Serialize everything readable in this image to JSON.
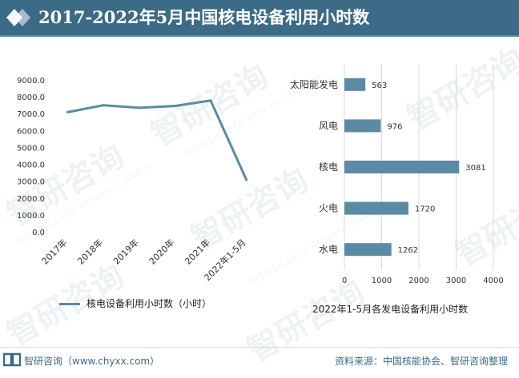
{
  "header": {
    "title": "2017-2022年5月中国核电设备利用小时数"
  },
  "watermark": {
    "text": "智研咨询",
    "sub": "INTELLIGENCE RESEARCH GROUP"
  },
  "chart_data": [
    {
      "type": "line",
      "categories": [
        "2017年",
        "2018年",
        "2019年",
        "2020年",
        "2021年",
        "2022年1-5月"
      ],
      "series": [
        {
          "name": "核电设备利用小时数（小时）",
          "values": [
            7089,
            7499,
            7346,
            7453,
            7777,
            3081
          ]
        }
      ],
      "yticks": [
        "9000.0",
        "8000.0",
        "7000.0",
        "6000.0",
        "5000.0",
        "4000.0",
        "3000.0",
        "2000.0",
        "1000.0",
        "0.0"
      ],
      "ylim": [
        0,
        9000
      ],
      "color": "#5a8aa4",
      "grid": false,
      "legend": "bottom"
    },
    {
      "type": "bar",
      "orientation": "horizontal",
      "title": "2022年1-5月各发电设备利用小时数",
      "categories": [
        "太阳能发电",
        "风电",
        "核电",
        "火电",
        "水电"
      ],
      "values": [
        563,
        976,
        3081,
        1720,
        1262
      ],
      "xticks": [
        "0",
        "1000",
        "2000",
        "3000",
        "4000"
      ],
      "xlim": [
        0,
        4000
      ],
      "color": "#5a8aa4",
      "grid": true
    }
  ],
  "footer": {
    "brand": "智研咨询（www.chyxx.com）",
    "source": "资料来源：中国核能协会、智研咨询整理"
  }
}
